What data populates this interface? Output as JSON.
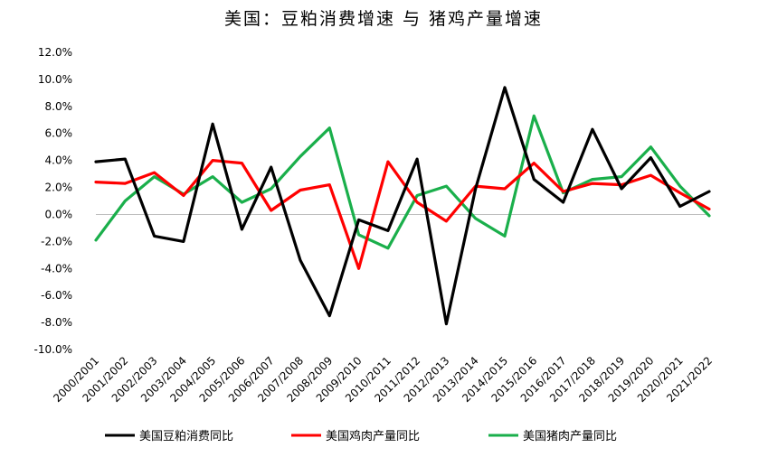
{
  "chart_data": {
    "type": "line",
    "title": "美国：豆粕消费增速 与 猪鸡产量增速",
    "xlabel": "",
    "ylabel": "",
    "ylim": [
      -10,
      12
    ],
    "yticks": [
      -10,
      -8,
      -6,
      -4,
      -2,
      0,
      2,
      4,
      6,
      8,
      10,
      12
    ],
    "ytick_labels": [
      "-10.0%",
      "-8.0%",
      "-6.0%",
      "-4.0%",
      "-2.0%",
      "0.0%",
      "2.0%",
      "4.0%",
      "6.0%",
      "8.0%",
      "10.0%",
      "12.0%"
    ],
    "categories": [
      "2000/2001",
      "2001/2002",
      "2002/2003",
      "2003/2004",
      "2004/2005",
      "2005/2006",
      "2006/2007",
      "2007/2008",
      "2008/2009",
      "2009/2010",
      "2010/2011",
      "2011/2012",
      "2012/2013",
      "2013/2014",
      "2014/2015",
      "2015/2016",
      "2016/2017",
      "2017/2018",
      "2018/2019",
      "2019/2020",
      "2020/2021",
      "2021/2022"
    ],
    "series": [
      {
        "name": "美国豆粕消费同比",
        "color": "#000000",
        "values": [
          3.9,
          4.1,
          -1.6,
          -2.0,
          6.7,
          -1.1,
          3.5,
          -3.4,
          -7.5,
          -0.4,
          -1.2,
          4.1,
          -8.1,
          1.9,
          9.4,
          2.6,
          0.9,
          6.3,
          1.9,
          4.2,
          0.6,
          1.7
        ]
      },
      {
        "name": "美国鸡肉产量同比",
        "color": "#ff0000",
        "values": [
          2.4,
          2.3,
          3.1,
          1.4,
          4.0,
          3.8,
          0.3,
          1.8,
          2.2,
          -4.0,
          3.9,
          0.9,
          -0.5,
          2.1,
          1.9,
          3.8,
          1.7,
          2.3,
          2.2,
          2.9,
          1.6,
          0.4
        ]
      },
      {
        "name": "美国猪肉产量同比",
        "color": "#1aaf4b",
        "values": [
          -1.9,
          1.0,
          2.8,
          1.5,
          2.8,
          0.9,
          1.9,
          4.3,
          6.4,
          -1.5,
          -2.5,
          1.4,
          2.1,
          -0.3,
          -1.6,
          7.3,
          1.6,
          2.6,
          2.8,
          5.0,
          2.1,
          -0.1
        ]
      }
    ],
    "grid": false,
    "legend": "bottom"
  }
}
